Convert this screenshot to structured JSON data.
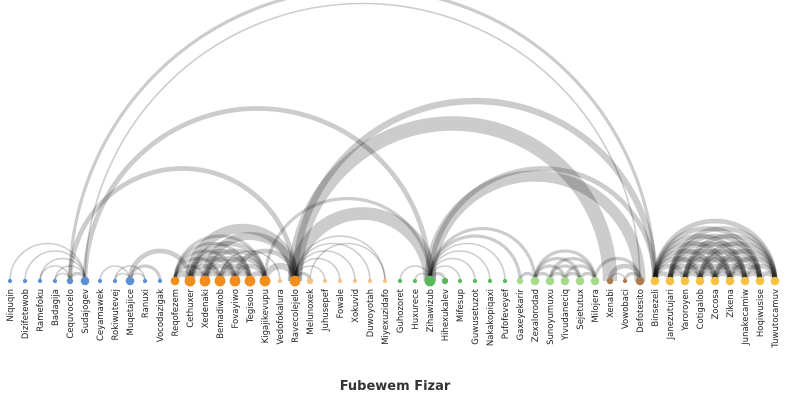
{
  "title": "Fubewem Fizar",
  "colors": {
    "blue": "#5b8fd6",
    "orange": "#f28e1c",
    "peach": "#f6c08a",
    "green": "#5cb85c",
    "light_green": "#a6d98a",
    "brown": "#a77b4b",
    "gold": "#f5c242"
  },
  "nodes": [
    {
      "name": "Niquqin",
      "color": "blue",
      "size": 1
    },
    {
      "name": "Dizifetewob",
      "color": "blue",
      "size": 1
    },
    {
      "name": "Ramefoku",
      "color": "blue",
      "size": 1
    },
    {
      "name": "Badagija",
      "color": "blue",
      "size": 1
    },
    {
      "name": "Cequvocelo",
      "color": "blue",
      "size": 2
    },
    {
      "name": "Sudajogev",
      "color": "blue",
      "size": 3
    },
    {
      "name": "Ceyamawek",
      "color": "blue",
      "size": 1
    },
    {
      "name": "Rokiwutevej",
      "color": "blue",
      "size": 1
    },
    {
      "name": "Muqetajice",
      "color": "blue",
      "size": 3
    },
    {
      "name": "Ranuxi",
      "color": "blue",
      "size": 1
    },
    {
      "name": "Vocodazigak",
      "color": "blue",
      "size": 1
    },
    {
      "name": "Reqofezem",
      "color": "orange",
      "size": 3
    },
    {
      "name": "Cethuxer",
      "color": "orange",
      "size": 4
    },
    {
      "name": "Xedenaki",
      "color": "orange",
      "size": 4
    },
    {
      "name": "Bemadiwob",
      "color": "orange",
      "size": 4
    },
    {
      "name": "Fovayiwo",
      "color": "orange",
      "size": 4
    },
    {
      "name": "Tegisolu",
      "color": "orange",
      "size": 4
    },
    {
      "name": "Kigajikevupu",
      "color": "orange",
      "size": 4
    },
    {
      "name": "Vedofokalura",
      "color": "peach",
      "size": 1
    },
    {
      "name": "Ravecolejelo",
      "color": "orange",
      "size": 4
    },
    {
      "name": "Melunoxek",
      "color": "peach",
      "size": 2
    },
    {
      "name": "Juhusepef",
      "color": "peach",
      "size": 1
    },
    {
      "name": "Fowale",
      "color": "peach",
      "size": 1
    },
    {
      "name": "Xokuvid",
      "color": "peach",
      "size": 1
    },
    {
      "name": "Duwoyotah",
      "color": "peach",
      "size": 1
    },
    {
      "name": "Miyexuzidafo",
      "color": "peach",
      "size": 1
    },
    {
      "name": "Guhozoret",
      "color": "green",
      "size": 1
    },
    {
      "name": "Huxurece",
      "color": "green",
      "size": 1
    },
    {
      "name": "Zihawizub",
      "color": "green",
      "size": 4
    },
    {
      "name": "Hihexukalev",
      "color": "green",
      "size": 2
    },
    {
      "name": "Mifesup",
      "color": "green",
      "size": 1
    },
    {
      "name": "Guwusetuzot",
      "color": "green",
      "size": 1
    },
    {
      "name": "Nakakopiqaxi",
      "color": "green",
      "size": 1
    },
    {
      "name": "Pufofeveyef",
      "color": "green",
      "size": 1
    },
    {
      "name": "Gaxeyekarir",
      "color": "light_green",
      "size": 2
    },
    {
      "name": "Zexalorodad",
      "color": "light_green",
      "size": 3
    },
    {
      "name": "Sunoyumuxu",
      "color": "light_green",
      "size": 3
    },
    {
      "name": "Yivudaneciq",
      "color": "light_green",
      "size": 3
    },
    {
      "name": "Sejetutux",
      "color": "light_green",
      "size": 3
    },
    {
      "name": "Milojera",
      "color": "light_green",
      "size": 3
    },
    {
      "name": "Xenabi",
      "color": "brown",
      "size": 2
    },
    {
      "name": "Vowobaci",
      "color": "brown",
      "size": 1
    },
    {
      "name": "Defotesito",
      "color": "brown",
      "size": 3
    },
    {
      "name": "Binsezeli",
      "color": "gold",
      "size": 3
    },
    {
      "name": "Janezutujari",
      "color": "gold",
      "size": 3
    },
    {
      "name": "Yaroroyen",
      "color": "gold",
      "size": 3
    },
    {
      "name": "Cotigalob",
      "color": "gold",
      "size": 3
    },
    {
      "name": "Zocosa",
      "color": "gold",
      "size": 3
    },
    {
      "name": "Zikena",
      "color": "gold",
      "size": 3
    },
    {
      "name": "Junakecamiw",
      "color": "gold",
      "size": 3
    },
    {
      "name": "Hoqiwusise",
      "color": "gold",
      "size": 3
    },
    {
      "name": "Tuwutocamuv",
      "color": "gold",
      "size": 3
    }
  ],
  "links": [
    [
      0,
      5,
      1
    ],
    [
      1,
      5,
      1
    ],
    [
      2,
      4,
      1
    ],
    [
      2,
      5,
      1
    ],
    [
      3,
      4,
      1
    ],
    [
      3,
      5,
      1
    ],
    [
      4,
      5,
      2
    ],
    [
      4,
      19,
      3
    ],
    [
      5,
      28,
      3
    ],
    [
      4,
      43,
      2
    ],
    [
      5,
      42,
      1
    ],
    [
      6,
      8,
      1
    ],
    [
      7,
      8,
      1
    ],
    [
      8,
      9,
      1
    ],
    [
      8,
      10,
      2
    ],
    [
      8,
      12,
      3
    ],
    [
      7,
      9,
      1
    ],
    [
      11,
      12,
      4
    ],
    [
      11,
      13,
      2
    ],
    [
      11,
      14,
      2
    ],
    [
      11,
      15,
      2
    ],
    [
      11,
      16,
      2
    ],
    [
      11,
      17,
      2
    ],
    [
      12,
      13,
      3
    ],
    [
      12,
      14,
      3
    ],
    [
      12,
      15,
      3
    ],
    [
      12,
      16,
      3
    ],
    [
      12,
      17,
      3
    ],
    [
      13,
      14,
      3
    ],
    [
      13,
      15,
      3
    ],
    [
      13,
      16,
      3
    ],
    [
      13,
      17,
      3
    ],
    [
      14,
      15,
      3
    ],
    [
      14,
      16,
      3
    ],
    [
      14,
      17,
      3
    ],
    [
      15,
      16,
      3
    ],
    [
      15,
      17,
      3
    ],
    [
      16,
      17,
      3
    ],
    [
      12,
      19,
      6
    ],
    [
      13,
      19,
      5
    ],
    [
      17,
      19,
      4
    ],
    [
      15,
      19,
      3
    ],
    [
      14,
      18,
      1
    ],
    [
      19,
      20,
      2
    ],
    [
      19,
      21,
      1
    ],
    [
      19,
      22,
      1
    ],
    [
      19,
      23,
      1
    ],
    [
      19,
      24,
      1
    ],
    [
      19,
      25,
      1
    ],
    [
      20,
      25,
      1
    ],
    [
      19,
      28,
      8
    ],
    [
      19,
      40,
      9
    ],
    [
      19,
      43,
      4
    ],
    [
      17,
      28,
      2
    ],
    [
      26,
      28,
      1
    ],
    [
      27,
      28,
      1
    ],
    [
      28,
      29,
      2
    ],
    [
      28,
      30,
      1
    ],
    [
      28,
      31,
      1
    ],
    [
      28,
      32,
      1
    ],
    [
      28,
      33,
      1
    ],
    [
      28,
      34,
      2
    ],
    [
      28,
      35,
      2
    ],
    [
      28,
      42,
      7
    ],
    [
      28,
      43,
      3
    ],
    [
      34,
      35,
      2
    ],
    [
      35,
      36,
      2
    ],
    [
      35,
      37,
      2
    ],
    [
      35,
      38,
      2
    ],
    [
      35,
      39,
      2
    ],
    [
      36,
      37,
      2
    ],
    [
      36,
      38,
      2
    ],
    [
      36,
      39,
      2
    ],
    [
      37,
      38,
      2
    ],
    [
      37,
      39,
      2
    ],
    [
      38,
      39,
      2
    ],
    [
      40,
      42,
      3
    ],
    [
      41,
      42,
      2
    ],
    [
      40,
      41,
      1
    ],
    [
      39,
      42,
      2
    ],
    [
      43,
      44,
      3
    ],
    [
      43,
      45,
      3
    ],
    [
      43,
      46,
      3
    ],
    [
      43,
      47,
      3
    ],
    [
      43,
      48,
      3
    ],
    [
      43,
      49,
      3
    ],
    [
      43,
      50,
      3
    ],
    [
      43,
      51,
      3
    ],
    [
      44,
      45,
      3
    ],
    [
      44,
      46,
      3
    ],
    [
      44,
      47,
      3
    ],
    [
      44,
      48,
      3
    ],
    [
      44,
      49,
      3
    ],
    [
      44,
      50,
      3
    ],
    [
      44,
      51,
      3
    ],
    [
      45,
      46,
      3
    ],
    [
      45,
      47,
      3
    ],
    [
      45,
      48,
      3
    ],
    [
      45,
      49,
      3
    ],
    [
      45,
      50,
      3
    ],
    [
      45,
      51,
      3
    ],
    [
      46,
      47,
      3
    ],
    [
      46,
      48,
      3
    ],
    [
      46,
      49,
      3
    ],
    [
      46,
      50,
      3
    ],
    [
      46,
      51,
      3
    ],
    [
      47,
      48,
      3
    ],
    [
      47,
      49,
      3
    ],
    [
      47,
      50,
      3
    ],
    [
      47,
      51,
      3
    ],
    [
      48,
      49,
      3
    ],
    [
      48,
      50,
      3
    ],
    [
      48,
      51,
      3
    ],
    [
      49,
      50,
      3
    ],
    [
      49,
      51,
      3
    ],
    [
      50,
      51,
      3
    ]
  ]
}
